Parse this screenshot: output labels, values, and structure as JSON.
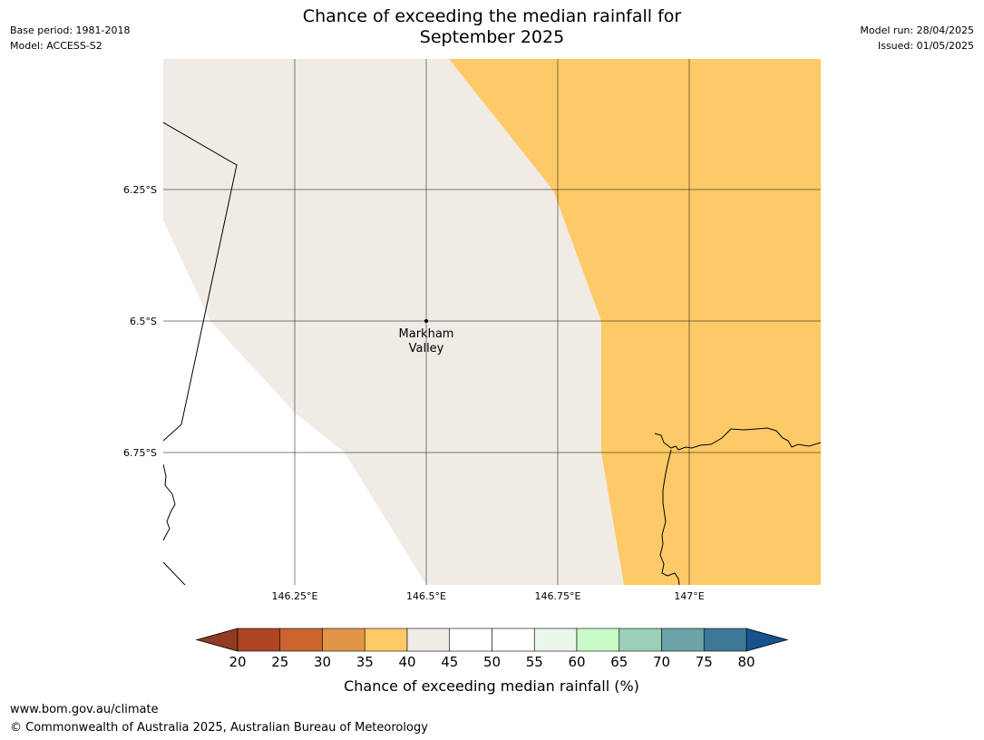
{
  "title_line1": "Chance of exceeding the median rainfall for",
  "title_line2": "September 2025",
  "meta_left": {
    "base_period": "Base period: 1981-2018",
    "model": "Model: ACCESS-S2"
  },
  "meta_right": {
    "model_run": "Model run: 28/04/2025",
    "issued": "Issued: 01/05/2025"
  },
  "map": {
    "lat_labels": [
      "6.25°S",
      "6.5°S",
      "6.75°S"
    ],
    "lon_labels": [
      "146.25°E",
      "146.5°E",
      "146.75°E",
      "147°E"
    ],
    "place": {
      "line1": "Markham",
      "line2": "Valley"
    },
    "category_colors": {
      "35-40": "#fdca67",
      "40-45": "#f0ebe5",
      "45-55": "#ffffff"
    }
  },
  "colorbar": {
    "label": "Chance of exceeding median rainfall (%)",
    "ticks": [
      "20",
      "25",
      "30",
      "35",
      "40",
      "45",
      "50",
      "55",
      "60",
      "65",
      "70",
      "75",
      "80"
    ],
    "colors": [
      "#ae4523",
      "#cc6430",
      "#e29547",
      "#fdca67",
      "#f0ebe5",
      "#ffffff",
      "#ffffff",
      "#e9f6e9",
      "#c8fbc8",
      "#9ccfb8",
      "#6da2a6",
      "#3d7897"
    ],
    "under_color": "#913a24",
    "over_color": "#17528d"
  },
  "footer": {
    "url": "www.bom.gov.au/climate",
    "copyright": "© Commonwealth of Australia 2025, Australian Bureau of Meteorology"
  }
}
